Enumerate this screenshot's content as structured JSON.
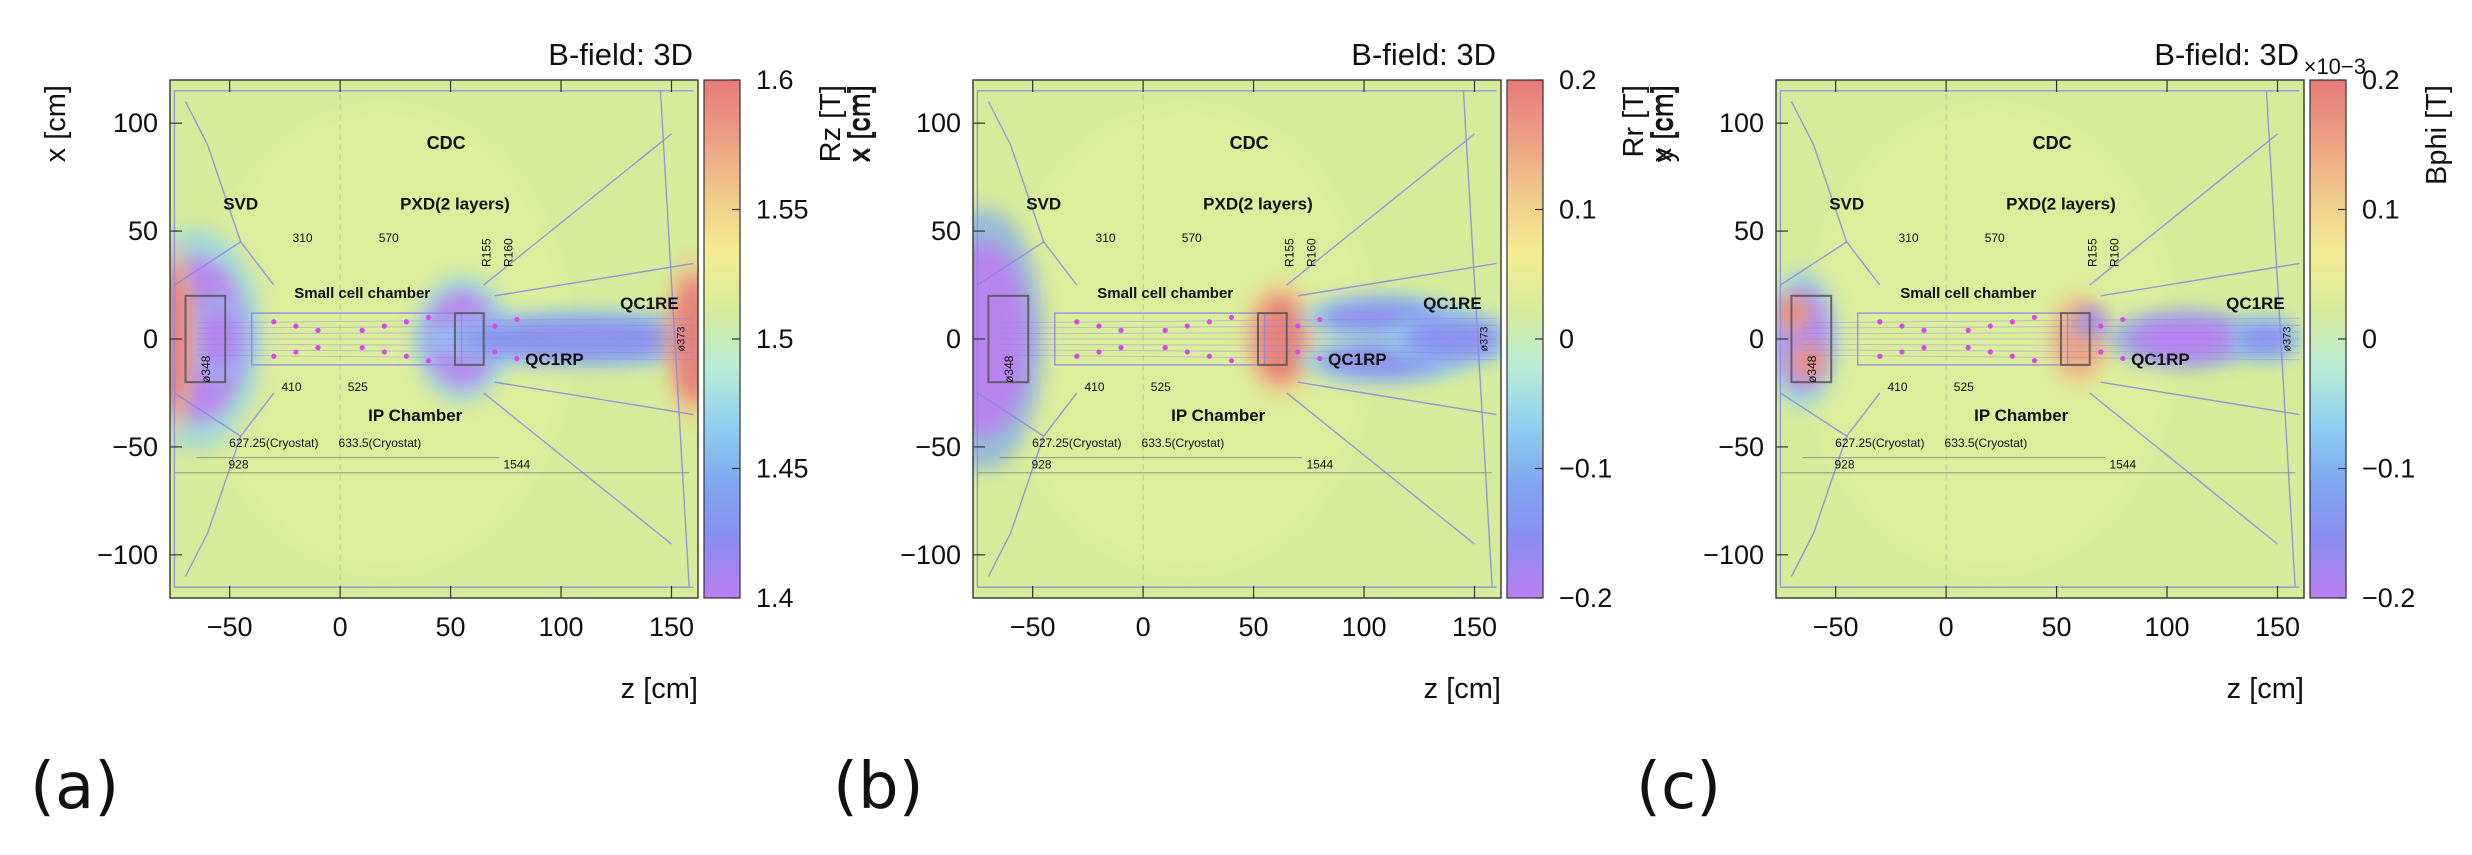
{
  "figure": {
    "panel_labels": [
      "(a)",
      "(b)",
      "(c)"
    ]
  },
  "detector_labels": {
    "cdc": "CDC",
    "svd": "SVD",
    "pxd": "PXD(2 layers)",
    "small_cell": "Small cell chamber",
    "ip_chamber": "IP Chamber",
    "qc1re": "QC1RE",
    "qc1rp": "QC1RP",
    "d310": "310",
    "d570": "570",
    "d410": "410",
    "d525": "525",
    "r155": "R155",
    "r160": "R160",
    "phi348": "ø348",
    "phi373": "ø373",
    "cryo1": "627.25(Cryostat)",
    "cryo2": "633.5(Cryostat)",
    "d928": "928",
    "d1544": "1544"
  },
  "colors": {
    "background_field": "#d6ec9a",
    "colormap": [
      "#b97ff0",
      "#8a8cf0",
      "#7fa7f0",
      "#8fd0f0",
      "#b9ecd6",
      "#d6ec9a",
      "#f4ec92",
      "#f0c98a",
      "#ec9f84",
      "#e77a78"
    ],
    "blob_low": "#8f73ec",
    "blob_high": "#ec7a6e",
    "detector_lines": "#8a86e6"
  },
  "chart_data": [
    {
      "type": "heatmap",
      "title": "B-field: 3D",
      "xlabel": "z [cm]",
      "ylabel": "x [cm]",
      "xlim": [
        -77,
        162
      ],
      "ylim": [
        -120,
        120
      ],
      "xticks": [
        -50,
        0,
        50,
        100,
        150
      ],
      "xtick_labels": [
        "−50",
        "0",
        "50",
        "100",
        "150"
      ],
      "yticks": [
        -100,
        -50,
        0,
        50,
        100
      ],
      "ytick_labels": [
        "−100",
        "−50",
        "0",
        "50",
        "100"
      ],
      "colorbar": {
        "label": "Rz [T]",
        "range": [
          1.4,
          1.6
        ],
        "ticks": [
          1.4,
          1.45,
          1.5,
          1.55,
          1.6
        ],
        "tick_labels": [
          "1.4",
          "1.45",
          "1.5",
          "1.55",
          "1.6"
        ],
        "exponent": ""
      },
      "background_value": 1.52,
      "features": [
        {
          "z": -65,
          "x": 0,
          "rz": 22,
          "rx": 38,
          "value": 1.4
        },
        {
          "z": -55,
          "x": 0,
          "rz": 10,
          "rx": 14,
          "value": 1.41
        },
        {
          "z": 55,
          "x": 0,
          "rz": 16,
          "rx": 22,
          "value": 1.4
        },
        {
          "z": 110,
          "x": 0,
          "rz": 55,
          "rx": 10,
          "value": 1.43
        },
        {
          "z": -77,
          "x": 0,
          "rz": 8,
          "rx": 34,
          "value": 1.59
        },
        {
          "z": 160,
          "x": 0,
          "rz": 10,
          "rx": 30,
          "value": 1.6
        }
      ]
    },
    {
      "type": "heatmap",
      "title": "B-field: 3D",
      "xlabel": "z [cm]",
      "ylabel": "y [cm]",
      "xlim": [
        -77,
        162
      ],
      "ylim": [
        -120,
        120
      ],
      "xticks": [
        -50,
        0,
        50,
        100,
        150
      ],
      "xtick_labels": [
        "−50",
        "0",
        "50",
        "100",
        "150"
      ],
      "yticks": [
        -100,
        -50,
        0,
        50,
        100
      ],
      "ytick_labels": [
        "−100",
        "−50",
        "0",
        "50",
        "100"
      ],
      "colorbar": {
        "label": "Rr [T]",
        "range": [
          -0.2,
          0.2
        ],
        "ticks": [
          -0.2,
          -0.1,
          0,
          0.1,
          0.2
        ],
        "tick_labels": [
          "−0.2",
          "−0.1",
          "0",
          "0.1",
          "0.2"
        ],
        "exponent": ""
      },
      "background_value": 0.02,
      "features": [
        {
          "z": -72,
          "x": 0,
          "rz": 20,
          "rx": 45,
          "value": -0.2
        },
        {
          "z": 62,
          "x": 0,
          "rz": 12,
          "rx": 20,
          "value": 0.2
        },
        {
          "z": 108,
          "x": 10,
          "rz": 28,
          "rx": 8,
          "value": -0.17
        },
        {
          "z": 108,
          "x": -10,
          "rz": 28,
          "rx": 8,
          "value": -0.17
        },
        {
          "z": 140,
          "x": 0,
          "rz": 22,
          "rx": 10,
          "value": -0.14
        }
      ]
    },
    {
      "type": "heatmap",
      "title": "B-field: 3D",
      "xlabel": "z [cm]",
      "ylabel": "",
      "xlim": [
        -77,
        162
      ],
      "ylim": [
        -120,
        120
      ],
      "xticks": [
        -50,
        0,
        50,
        100,
        150
      ],
      "xtick_labels": [
        "−50",
        "0",
        "50",
        "100",
        "150"
      ],
      "yticks": [
        -100,
        -50,
        0,
        50,
        100
      ],
      "ytick_labels": [
        "−100",
        "−50",
        "0",
        "50",
        "100"
      ],
      "colorbar": {
        "label": "Bphi [T]",
        "range": [
          -0.2,
          0.2
        ],
        "ticks": [
          -0.2,
          -0.1,
          0,
          0.1,
          0.2
        ],
        "tick_labels": [
          "−0.2",
          "−0.1",
          "0",
          "0.1",
          "0.2"
        ],
        "exponent": "×10−3"
      },
      "background_value": 0.02,
      "features": [
        {
          "z": -65,
          "x": 0,
          "rz": 12,
          "rx": 24,
          "value": -0.18
        },
        {
          "z": -70,
          "x": 12,
          "rz": 6,
          "rx": 6,
          "value": 0.2
        },
        {
          "z": -62,
          "x": -10,
          "rz": 6,
          "rx": 6,
          "value": 0.18
        },
        {
          "z": 60,
          "x": 0,
          "rz": 10,
          "rx": 16,
          "value": 0.16
        },
        {
          "z": 66,
          "x": 8,
          "rz": 5,
          "rx": 5,
          "value": -0.2
        },
        {
          "z": 108,
          "x": 0,
          "rz": 26,
          "rx": 10,
          "value": -0.2
        },
        {
          "z": 145,
          "x": 0,
          "rz": 12,
          "rx": 8,
          "value": -0.16
        }
      ]
    }
  ]
}
